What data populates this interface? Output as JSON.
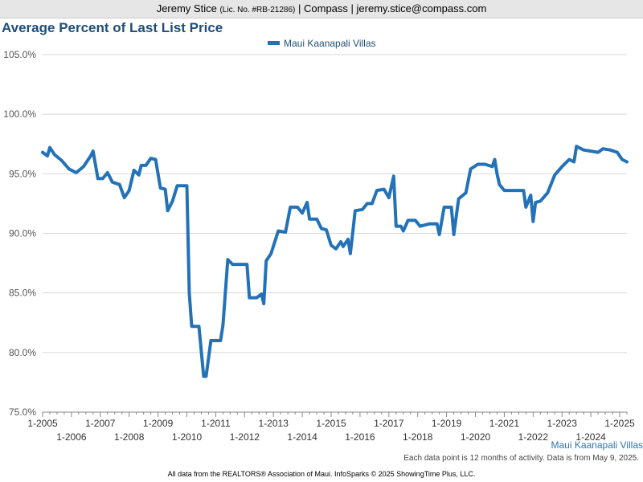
{
  "header": {
    "agent_name": "Jeremy Stice",
    "license": "(Lic. No. #RB-21286)",
    "company": "| Compass |",
    "email": "jeremy.stice@compass.com"
  },
  "colors": {
    "series": "#2372b8",
    "title": "#1f4e79"
  },
  "footer": {
    "series_caption": "Maui Kaanapali Villas",
    "note": "Each data point is 12 months of activity. Data is from May 9, 2025.",
    "source": "All data from the REALTORS® Association of Maui. InfoSparks © 2025 ShowingTime Plus, LLC."
  },
  "chart_data": {
    "type": "line",
    "title": "Average Percent of Last List Price",
    "xlabel": "",
    "ylabel": "",
    "ylim": [
      75,
      105
    ],
    "y_ticks": [
      "75.0%",
      "80.0%",
      "85.0%",
      "90.0%",
      "95.0%",
      "100.0%",
      "105.0%"
    ],
    "y_tick_values": [
      75,
      80,
      85,
      90,
      95,
      100,
      105
    ],
    "x_ticks": [
      "1-2005",
      "1-2006",
      "1-2007",
      "1-2008",
      "1-2009",
      "1-2010",
      "1-2011",
      "1-2012",
      "1-2013",
      "1-2014",
      "1-2015",
      "1-2016",
      "1-2017",
      "1-2018",
      "1-2019",
      "1-2020",
      "1-2021",
      "1-2022",
      "1-2023",
      "1-2024",
      "1-2025"
    ],
    "x_range": [
      "2005-01",
      "2025-04"
    ],
    "grid": "horizontal",
    "legend_position": "top-center",
    "series": [
      {
        "name": "Maui Kaanapali Villas",
        "points": [
          [
            "2005-01",
            96.8
          ],
          [
            "2005-03",
            96.5
          ],
          [
            "2005-04",
            97.2
          ],
          [
            "2005-06",
            96.6
          ],
          [
            "2005-09",
            96.1
          ],
          [
            "2005-12",
            95.4
          ],
          [
            "2006-03",
            95.1
          ],
          [
            "2006-06",
            95.6
          ],
          [
            "2006-09",
            96.5
          ],
          [
            "2006-10",
            96.9
          ],
          [
            "2006-12",
            94.6
          ],
          [
            "2007-02",
            94.6
          ],
          [
            "2007-04",
            95.1
          ],
          [
            "2007-06",
            94.3
          ],
          [
            "2007-09",
            94.1
          ],
          [
            "2007-11",
            93.0
          ],
          [
            "2008-01",
            93.6
          ],
          [
            "2008-03",
            95.3
          ],
          [
            "2008-05",
            94.9
          ],
          [
            "2008-06",
            95.7
          ],
          [
            "2008-08",
            95.7
          ],
          [
            "2008-10",
            96.3
          ],
          [
            "2008-12",
            96.2
          ],
          [
            "2009-02",
            93.8
          ],
          [
            "2009-04",
            93.7
          ],
          [
            "2009-05",
            91.9
          ],
          [
            "2009-07",
            92.7
          ],
          [
            "2009-09",
            94.0
          ],
          [
            "2009-12",
            94.0
          ],
          [
            "2010-01",
            94.0
          ],
          [
            "2010-02",
            85.0
          ],
          [
            "2010-03",
            82.2
          ],
          [
            "2010-06",
            82.2
          ],
          [
            "2010-08",
            78.0
          ],
          [
            "2010-09",
            78.0
          ],
          [
            "2010-11",
            81.0
          ],
          [
            "2011-03",
            81.0
          ],
          [
            "2011-04",
            82.3
          ],
          [
            "2011-06",
            87.8
          ],
          [
            "2011-08",
            87.4
          ],
          [
            "2011-12",
            87.4
          ],
          [
            "2012-02",
            87.4
          ],
          [
            "2012-03",
            84.6
          ],
          [
            "2012-06",
            84.6
          ],
          [
            "2012-08",
            84.9
          ],
          [
            "2012-09",
            84.1
          ],
          [
            "2012-10",
            87.7
          ],
          [
            "2012-12",
            88.3
          ],
          [
            "2013-03",
            90.2
          ],
          [
            "2013-06",
            90.1
          ],
          [
            "2013-08",
            92.2
          ],
          [
            "2013-11",
            92.2
          ],
          [
            "2014-01",
            91.7
          ],
          [
            "2014-03",
            92.6
          ],
          [
            "2014-04",
            91.2
          ],
          [
            "2014-07",
            91.2
          ],
          [
            "2014-09",
            90.4
          ],
          [
            "2014-11",
            90.3
          ],
          [
            "2015-01",
            89.0
          ],
          [
            "2015-03",
            88.7
          ],
          [
            "2015-05",
            89.3
          ],
          [
            "2015-06",
            88.9
          ],
          [
            "2015-08",
            89.5
          ],
          [
            "2015-09",
            88.3
          ],
          [
            "2015-11",
            91.9
          ],
          [
            "2016-02",
            92.0
          ],
          [
            "2016-04",
            92.5
          ],
          [
            "2016-06",
            92.5
          ],
          [
            "2016-08",
            93.6
          ],
          [
            "2016-11",
            93.7
          ],
          [
            "2017-01",
            93.0
          ],
          [
            "2017-03",
            94.8
          ],
          [
            "2017-04",
            90.6
          ],
          [
            "2017-06",
            90.6
          ],
          [
            "2017-07",
            90.2
          ],
          [
            "2017-09",
            91.1
          ],
          [
            "2017-12",
            91.1
          ],
          [
            "2018-02",
            90.6
          ],
          [
            "2018-06",
            90.8
          ],
          [
            "2018-09",
            90.8
          ],
          [
            "2018-10",
            89.9
          ],
          [
            "2018-12",
            92.2
          ],
          [
            "2019-03",
            92.2
          ],
          [
            "2019-04",
            89.9
          ],
          [
            "2019-06",
            92.9
          ],
          [
            "2019-09",
            93.4
          ],
          [
            "2019-11",
            95.4
          ],
          [
            "2020-02",
            95.8
          ],
          [
            "2020-05",
            95.8
          ],
          [
            "2020-08",
            95.6
          ],
          [
            "2020-09",
            96.2
          ],
          [
            "2020-10",
            95.0
          ],
          [
            "2020-11",
            94.1
          ],
          [
            "2021-01",
            93.6
          ],
          [
            "2021-06",
            93.6
          ],
          [
            "2021-09",
            93.6
          ],
          [
            "2021-10",
            92.2
          ],
          [
            "2021-12",
            93.2
          ],
          [
            "2022-01",
            91.0
          ],
          [
            "2022-02",
            92.6
          ],
          [
            "2022-04",
            92.7
          ],
          [
            "2022-07",
            93.4
          ],
          [
            "2022-10",
            94.9
          ],
          [
            "2023-01",
            95.6
          ],
          [
            "2023-04",
            96.2
          ],
          [
            "2023-06",
            96.0
          ],
          [
            "2023-07",
            97.3
          ],
          [
            "2023-10",
            97.0
          ],
          [
            "2024-01",
            96.9
          ],
          [
            "2024-04",
            96.8
          ],
          [
            "2024-06",
            97.1
          ],
          [
            "2024-09",
            97.0
          ],
          [
            "2024-12",
            96.8
          ],
          [
            "2025-02",
            96.2
          ],
          [
            "2025-04",
            96.0
          ]
        ]
      }
    ]
  }
}
